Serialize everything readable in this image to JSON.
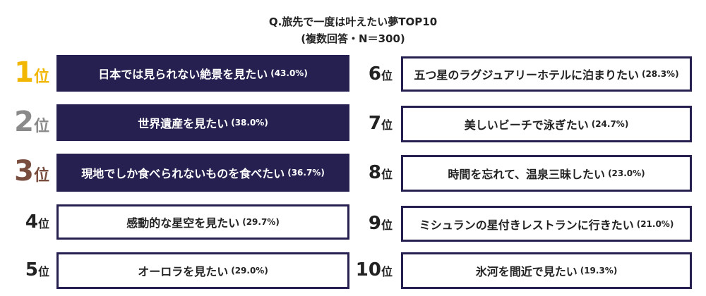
{
  "title": "Q.旅先で一度は叶えたい夢TOP10",
  "subtitle": "(複数回答・N＝300)",
  "colors": {
    "navy": "#25204f",
    "rank1": "#f2b705",
    "rank2": "#8a8a8a",
    "rank3": "#7a4e3f"
  },
  "rank_suffix": "位",
  "items": [
    {
      "rank": "1",
      "text": "日本では見られない絶景を見たい",
      "percent": "(43.0%)"
    },
    {
      "rank": "2",
      "text": "世界遺産を見たい",
      "percent": "(38.0%)"
    },
    {
      "rank": "3",
      "text": "現地でしか食べられないものを食べたい",
      "percent": "(36.7%)"
    },
    {
      "rank": "4",
      "text": "感動的な星空を見たい",
      "percent": "(29.7%)"
    },
    {
      "rank": "5",
      "text": "オーロラを見たい",
      "percent": "(29.0%)"
    },
    {
      "rank": "6",
      "text": "五つ星のラグジュアリーホテルに泊まりたい",
      "percent": "(28.3%)"
    },
    {
      "rank": "7",
      "text": "美しいビーチで泳ぎたい",
      "percent": "(24.7%)"
    },
    {
      "rank": "8",
      "text": "時間を忘れて、温泉三昧したい",
      "percent": "(23.0%)"
    },
    {
      "rank": "9",
      "text": "ミシュランの星付きレストランに行きたい",
      "percent": "(21.0%)"
    },
    {
      "rank": "10",
      "text": "氷河を間近で見たい",
      "percent": "(19.3%)"
    }
  ]
}
